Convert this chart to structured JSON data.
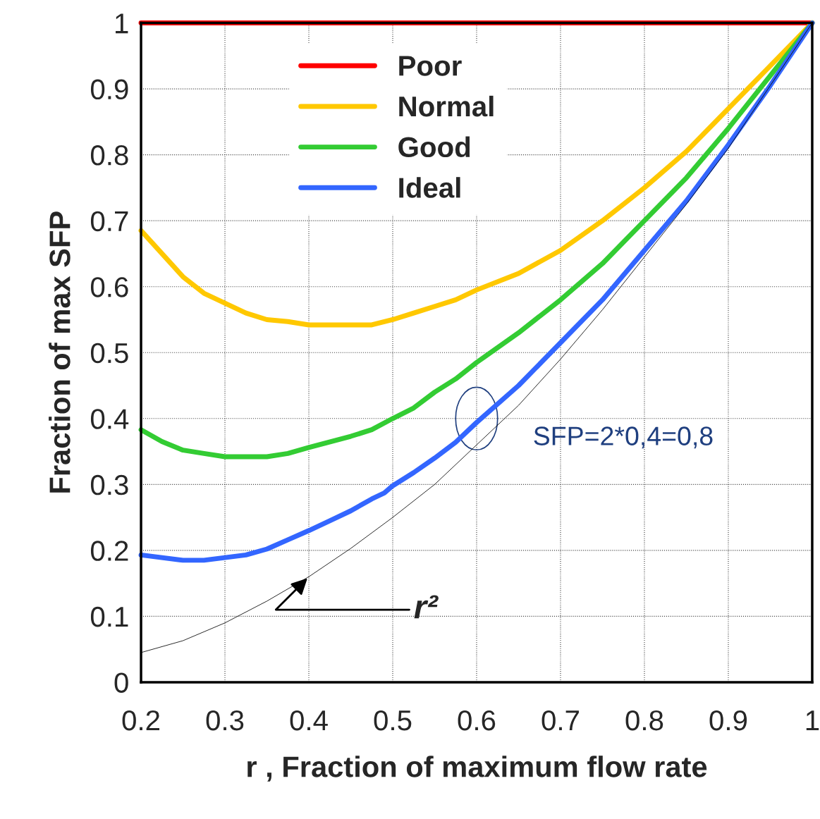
{
  "chart_data": {
    "type": "line",
    "xlabel": "r , Fraction of maximum flow rate",
    "ylabel": "Fraction of max SFP",
    "xlim": [
      0.2,
      1
    ],
    "ylim": [
      0,
      1
    ],
    "xticks": [
      0.2,
      0.3,
      0.4,
      0.5,
      0.6,
      0.7,
      0.8,
      0.9,
      1
    ],
    "yticks": [
      0,
      0.1,
      0.2,
      0.3,
      0.4,
      0.5,
      0.6,
      0.7,
      0.8,
      0.9,
      1
    ],
    "grid": true,
    "legend": "top left",
    "line_style": "solid",
    "marker": "none",
    "series": [
      {
        "name": "Poor",
        "color": "#ff0000",
        "x": [
          0.2,
          1
        ],
        "values": [
          1,
          1
        ]
      },
      {
        "name": "Normal",
        "color": "#ffc800",
        "x": [
          0.2,
          0.25,
          0.275,
          0.3,
          0.325,
          0.35,
          0.375,
          0.4,
          0.45,
          0.475,
          0.5,
          0.525,
          0.55,
          0.575,
          0.6,
          0.65,
          0.7,
          0.75,
          0.8,
          0.85,
          0.9,
          0.95,
          1
        ],
        "values": [
          0.685,
          0.615,
          0.59,
          0.575,
          0.56,
          0.55,
          0.547,
          0.542,
          0.542,
          0.542,
          0.55,
          0.56,
          0.57,
          0.58,
          0.595,
          0.62,
          0.655,
          0.7,
          0.75,
          0.805,
          0.87,
          0.935,
          1
        ]
      },
      {
        "name": "Good",
        "color": "#33cc33",
        "x": [
          0.2,
          0.225,
          0.25,
          0.275,
          0.3,
          0.35,
          0.375,
          0.4,
          0.45,
          0.475,
          0.5,
          0.525,
          0.55,
          0.575,
          0.6,
          0.65,
          0.7,
          0.75,
          0.8,
          0.85,
          0.9,
          0.95,
          1
        ],
        "values": [
          0.383,
          0.365,
          0.352,
          0.347,
          0.342,
          0.342,
          0.347,
          0.356,
          0.373,
          0.383,
          0.4,
          0.416,
          0.44,
          0.46,
          0.485,
          0.53,
          0.58,
          0.635,
          0.7,
          0.765,
          0.84,
          0.92,
          1
        ]
      },
      {
        "name": "Ideal",
        "color": "#3366ff",
        "x": [
          0.2,
          0.25,
          0.275,
          0.3,
          0.325,
          0.35,
          0.375,
          0.4,
          0.425,
          0.45,
          0.475,
          0.49,
          0.5,
          0.525,
          0.55,
          0.575,
          0.6,
          0.65,
          0.7,
          0.75,
          0.8,
          0.85,
          0.9,
          0.95,
          1
        ],
        "values": [
          0.193,
          0.185,
          0.185,
          0.189,
          0.193,
          0.202,
          0.216,
          0.23,
          0.245,
          0.26,
          0.278,
          0.287,
          0.298,
          0.318,
          0.34,
          0.364,
          0.394,
          0.45,
          0.515,
          0.58,
          0.655,
          0.73,
          0.815,
          0.905,
          1
        ]
      },
      {
        "color": "#000000",
        "x": [
          0.2,
          0.25,
          0.3,
          0.35,
          0.4,
          0.45,
          0.5,
          0.55,
          0.6,
          0.65,
          0.7,
          0.75,
          0.8,
          0.85,
          0.9,
          0.95,
          1
        ],
        "values": [
          0.045,
          0.063,
          0.09,
          0.123,
          0.16,
          0.203,
          0.25,
          0.3,
          0.36,
          0.42,
          0.49,
          0.565,
          0.645,
          0.725,
          0.81,
          0.905,
          1
        ]
      }
    ],
    "annotations": [
      {
        "text": "r²",
        "x": 0.4,
        "y": 0.16
      },
      {
        "text": "SFP=2*0,4=0,8",
        "x": 0.6,
        "y": 0.4
      }
    ]
  }
}
